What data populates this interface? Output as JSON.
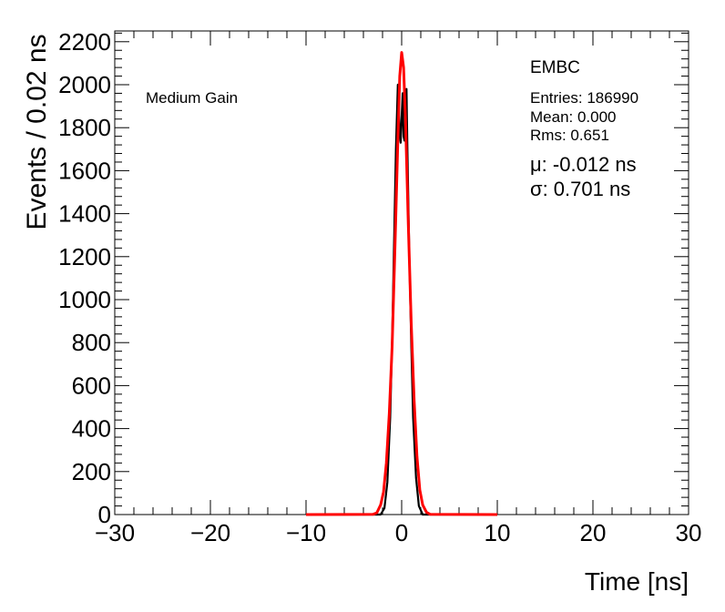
{
  "chart_data": {
    "type": "line",
    "xlabel": "Time [ns]",
    "ylabel": "Events / 0.02 ns",
    "xlim": [
      -30,
      30
    ],
    "ylim": [
      0,
      2250
    ],
    "x_ticks": [
      -30,
      -20,
      -10,
      0,
      10,
      20,
      30
    ],
    "x_tick_labels": [
      "−30",
      "−20",
      "−10",
      "0",
      "10",
      "20",
      "30"
    ],
    "y_ticks": [
      0,
      200,
      400,
      600,
      800,
      1000,
      1200,
      1400,
      1600,
      1800,
      2000,
      2200
    ],
    "y_tick_labels": [
      "0",
      "200",
      "400",
      "600",
      "800",
      "1000",
      "1200",
      "1400",
      "1600",
      "1800",
      "2000",
      "2200"
    ],
    "annotations": {
      "gain_label": "Medium Gain",
      "detector": "EMBC",
      "entries": "Entries: 186990",
      "mean": "Mean: 0.000",
      "rms": "Rms: 0.651",
      "mu": "μ: -0.012 ns",
      "sigma": "σ: 0.701 ns"
    },
    "series": [
      {
        "color": "#000000",
        "x": [
          -10,
          -2.2,
          -1.8,
          -1.5,
          -1.2,
          -1.0,
          -0.8,
          -0.6,
          -0.4,
          -0.3,
          -0.2,
          -0.1,
          0.0,
          0.1,
          0.2,
          0.3,
          0.4,
          0.5,
          0.6,
          0.8,
          1.0,
          1.2,
          1.5,
          1.8,
          2.2,
          10
        ],
        "y": [
          0,
          0,
          30,
          150,
          450,
          800,
          1250,
          1700,
          2000,
          1900,
          1760,
          1730,
          1850,
          1960,
          1760,
          1740,
          1800,
          1980,
          1700,
          1200,
          800,
          450,
          170,
          40,
          0,
          0
        ]
      },
      {
        "color": "#ff0000",
        "x": [
          -10,
          -3,
          -2.6,
          -2.2,
          -1.9,
          -1.6,
          -1.3,
          -1.0,
          -0.7,
          -0.4,
          -0.2,
          0.0,
          0.2,
          0.4,
          0.7,
          1.0,
          1.3,
          1.6,
          1.9,
          2.2,
          2.6,
          3,
          10
        ],
        "y": [
          0,
          1,
          8,
          45,
          105,
          240,
          470,
          780,
          1240,
          1740,
          2040,
          2150,
          2080,
          1840,
          1350,
          890,
          530,
          270,
          115,
          45,
          10,
          1,
          0
        ]
      }
    ]
  }
}
